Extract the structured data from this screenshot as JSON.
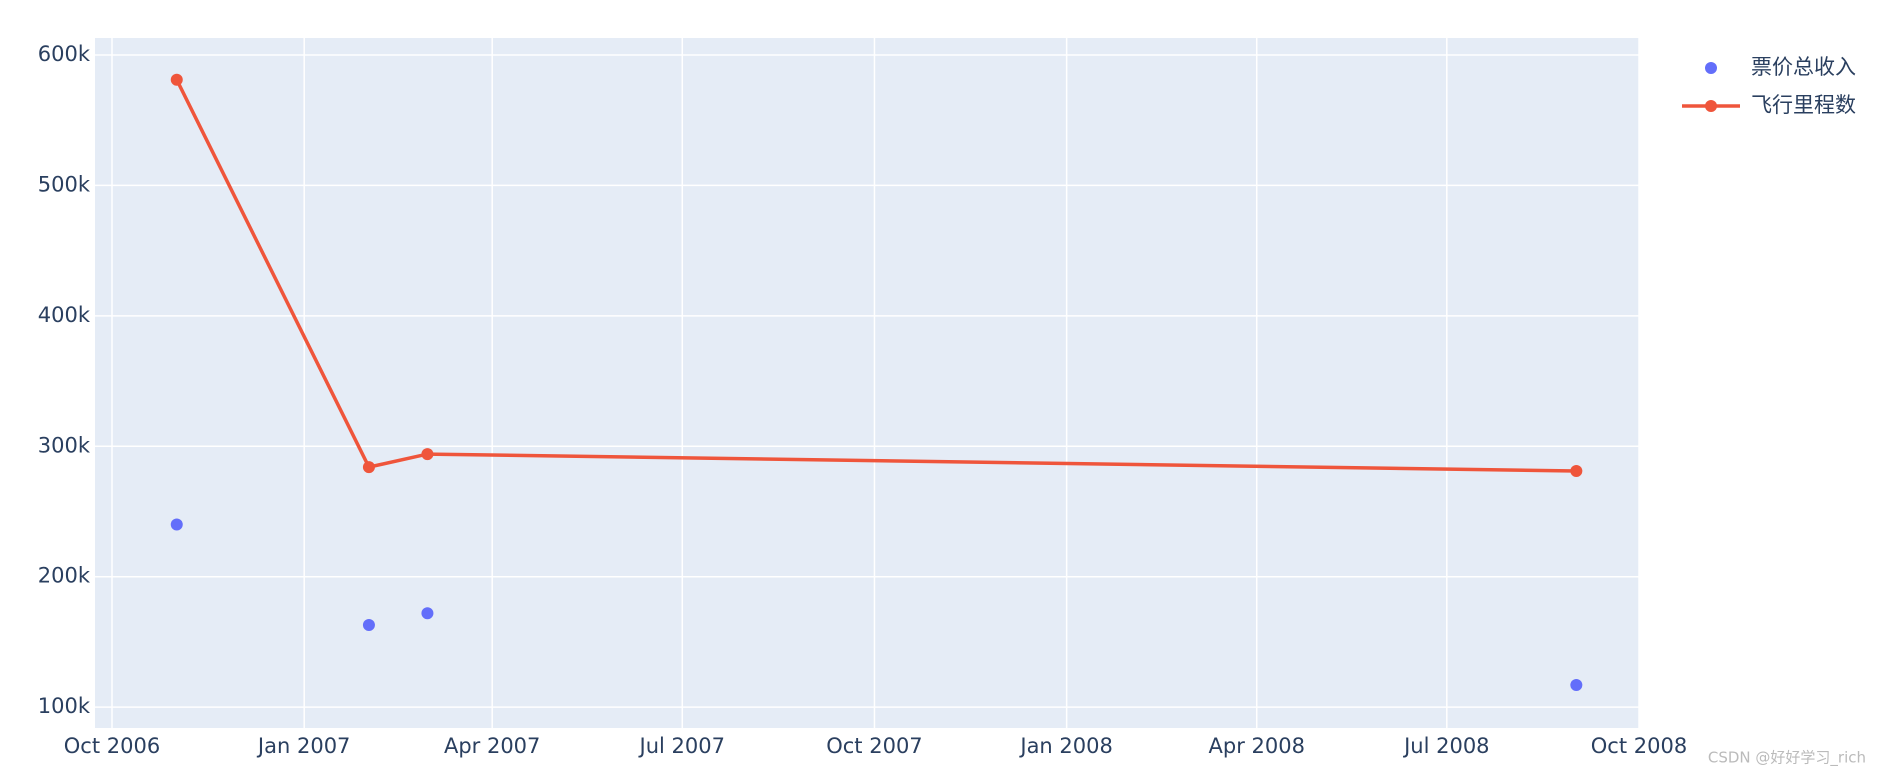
{
  "chart_data": {
    "type": "line",
    "x": [
      "2006-11",
      "2007-02",
      "2007-03",
      "2008-09"
    ],
    "series": [
      {
        "name": "票价总收入",
        "color": "#636efa",
        "mode": "markers",
        "values": [
          240000,
          163000,
          172000,
          117000
        ]
      },
      {
        "name": "飞行里程数",
        "color": "#ef553b",
        "mode": "lines+markers",
        "values": [
          581000,
          284000,
          294000,
          281000
        ]
      }
    ],
    "xlim": [
      "2006-10",
      "2008-10"
    ],
    "xticks": [
      {
        "value": "2006-10",
        "label": "Oct 2006"
      },
      {
        "value": "2007-01",
        "label": "Jan 2007"
      },
      {
        "value": "2007-04",
        "label": "Apr 2007"
      },
      {
        "value": "2007-07",
        "label": "Jul 2007"
      },
      {
        "value": "2007-10",
        "label": "Oct 2007"
      },
      {
        "value": "2008-01",
        "label": "Jan 2008"
      },
      {
        "value": "2008-04",
        "label": "Apr 2008"
      },
      {
        "value": "2008-07",
        "label": "Jul 2008"
      },
      {
        "value": "2008-10",
        "label": "Oct 2008"
      }
    ],
    "ylim": [
      84000,
      613000
    ],
    "yticks": [
      {
        "value": 100000,
        "label": "100k"
      },
      {
        "value": 200000,
        "label": "200k"
      },
      {
        "value": 300000,
        "label": "300k"
      },
      {
        "value": 400000,
        "label": "400k"
      },
      {
        "value": 500000,
        "label": "500k"
      },
      {
        "value": 600000,
        "label": "600k"
      }
    ],
    "grid": true,
    "legend": "top-right",
    "watermark": "CSDN @好好学习_rich"
  }
}
